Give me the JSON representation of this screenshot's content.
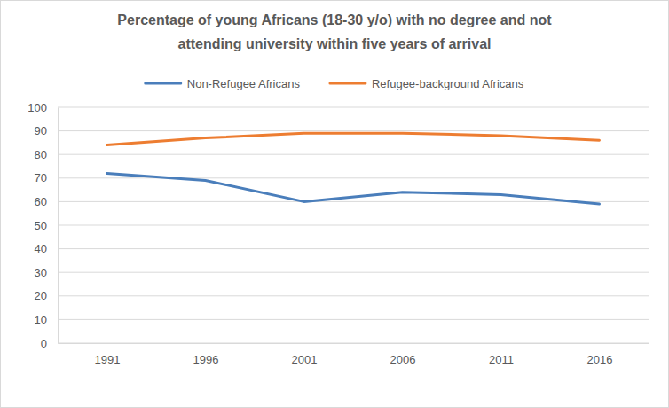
{
  "chart_data": {
    "type": "line",
    "title": "Percentage of young Africans (18-30 y/o) with no degree and not attending university within five years of arrival",
    "categories": [
      "1991",
      "1996",
      "2001",
      "2006",
      "2011",
      "2016"
    ],
    "series": [
      {
        "name": "Non-Refugee Africans",
        "color": "#4a7ebb",
        "values": [
          72,
          69,
          60,
          64,
          63,
          59
        ]
      },
      {
        "name": "Refugee-background Africans",
        "color": "#ed7d31",
        "values": [
          84,
          87,
          89,
          89,
          88,
          86
        ]
      }
    ],
    "ylim": [
      0,
      100
    ],
    "yticks": [
      0,
      10,
      20,
      30,
      40,
      50,
      60,
      70,
      80,
      90,
      100
    ],
    "grid": true,
    "legend": "top"
  }
}
